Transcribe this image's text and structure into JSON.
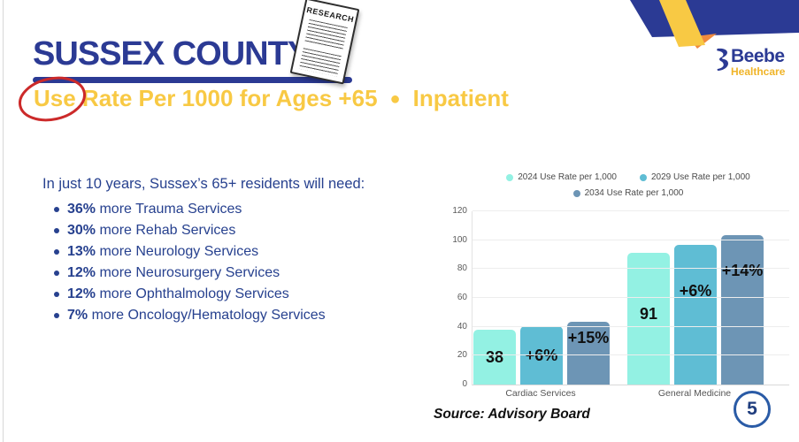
{
  "slide": {
    "title": "SUSSEX COUNTY",
    "subtitle_part1": "Use Rate Per 1000 for Ages +65",
    "subtitle_separator": "●",
    "subtitle_part2": "Inpatient",
    "source": "Source: Advisory Board",
    "page_number": "5"
  },
  "logo": {
    "name": "Beebe",
    "sub": "Healthcare"
  },
  "research_paper": {
    "label": "RESEARCH"
  },
  "intro": {
    "heading": "In just 10 years, Sussex’s 65+ residents will need:",
    "bullets": [
      {
        "pct": "36%",
        "text": " more Trauma Services"
      },
      {
        "pct": "30%",
        "text": " more Rehab Services"
      },
      {
        "pct": "13%",
        "text": " more Neurology Services"
      },
      {
        "pct": "12%",
        "text": " more Neurosurgery Services"
      },
      {
        "pct": "12%",
        "text": " more Ophthalmology Services"
      },
      {
        "pct": "7%",
        "text": " more Oncology/Hematology Services"
      }
    ]
  },
  "chart_data": {
    "type": "bar",
    "title": "",
    "xlabel": "",
    "ylabel": "",
    "categories": [
      "Cardiac Services",
      "General Medicine"
    ],
    "series": [
      {
        "name": "2024 Use Rate per 1,000",
        "color": "#93f1e3",
        "values": [
          38,
          91
        ],
        "labels": [
          "38",
          "91"
        ],
        "label_pos": [
          0.5,
          0.46
        ]
      },
      {
        "name": "2029 Use Rate per 1,000",
        "color": "#5fbdd4",
        "values": [
          40.3,
          96.5
        ],
        "labels": [
          "+6%",
          "+6%"
        ],
        "label_pos": [
          0.5,
          0.33
        ]
      },
      {
        "name": "2034 Use Rate per 1,000",
        "color": "#6d95b5",
        "values": [
          43.7,
          103.7
        ],
        "labels": [
          "+15%",
          "+14%"
        ],
        "label_pos": [
          0.26,
          0.24
        ]
      }
    ],
    "ylim": [
      0,
      120
    ],
    "yticks": [
      0,
      20,
      40,
      60,
      80,
      100,
      120
    ],
    "grid": true,
    "legend_position": "top"
  },
  "colors": {
    "navy": "#2b3a94",
    "body_navy": "#27418f",
    "yellow": "#f8c944",
    "annotation_red": "#cc2a2a",
    "corner_orange": "#f08a3e",
    "badge_border": "#2a5ba6",
    "bar_2024": "#93f1e3",
    "bar_2029": "#5fbdd4",
    "bar_2034": "#6d95b5"
  }
}
